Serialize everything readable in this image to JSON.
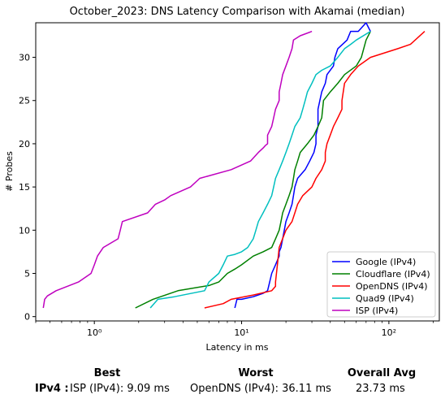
{
  "chart_data": {
    "type": "line",
    "title": "October_2023: DNS Latency Comparison with Akamai (median)",
    "xlabel": "Latency in ms",
    "ylabel": "# Probes",
    "xscale": "log",
    "xlim": [
      0.4,
      220
    ],
    "ylim": [
      -0.5,
      34
    ],
    "x_ticks": [
      1,
      10,
      100
    ],
    "x_tick_labels": [
      "10⁰",
      "10¹",
      "10²"
    ],
    "y_ticks": [
      0,
      5,
      10,
      15,
      20,
      25,
      30
    ],
    "grid": false,
    "legend_position": "lower-right",
    "series": [
      {
        "name": "Google (IPv4)",
        "color": "#0000ff",
        "x": [
          9.0,
          9.3,
          10,
          12,
          14,
          15,
          15.5,
          16,
          17,
          18,
          18,
          18.5,
          19,
          19.5,
          20,
          21,
          22,
          22.5,
          23,
          24,
          27,
          29,
          31,
          32,
          32,
          33,
          33,
          33,
          34,
          35,
          37,
          38,
          42,
          43,
          45,
          52,
          55,
          62,
          70,
          75
        ],
        "y": [
          1,
          2,
          2,
          2.3,
          2.7,
          3,
          4,
          5,
          6,
          7,
          7.5,
          8,
          9,
          10,
          11,
          12,
          13,
          14,
          15,
          16,
          17,
          18,
          19,
          20,
          21,
          22,
          23,
          24,
          25,
          26,
          27,
          28,
          29,
          30,
          31,
          32,
          33,
          33,
          34,
          33
        ]
      },
      {
        "name": "Cloudflare (IPv4)",
        "color": "#008000",
        "x": [
          1.9,
          2.5,
          3.7,
          6,
          7,
          8,
          9,
          10,
          12,
          14,
          16,
          17,
          18,
          18.5,
          19,
          20,
          21,
          22,
          22.5,
          23,
          24,
          25,
          28,
          31,
          33,
          35,
          36,
          40,
          45,
          50,
          60,
          65,
          70,
          75
        ],
        "y": [
          1,
          2,
          3,
          3.6,
          4,
          5,
          5.5,
          6,
          7,
          7.5,
          8,
          9,
          10,
          11,
          12,
          13,
          14,
          15,
          16,
          17,
          18,
          19,
          20,
          21,
          22,
          23,
          25,
          26,
          27,
          28,
          29,
          30,
          32,
          33
        ]
      },
      {
        "name": "OpenDNS (IPv4)",
        "color": "#ff0000",
        "x": [
          5.6,
          7.5,
          8.5,
          12,
          16,
          17,
          17,
          17.5,
          18,
          20,
          22,
          23,
          24,
          26,
          30,
          32,
          35,
          37,
          37,
          38,
          40,
          42,
          45,
          48,
          48,
          49,
          50,
          55,
          62,
          75,
          115,
          140,
          175
        ],
        "y": [
          1,
          1.5,
          2,
          2.5,
          3,
          3.5,
          4,
          6,
          8,
          10,
          11,
          12,
          13,
          14,
          15,
          16,
          17,
          18,
          19,
          20,
          21,
          22,
          23,
          24,
          25,
          26,
          27,
          28,
          29,
          30,
          31,
          31.5,
          33
        ]
      },
      {
        "name": "Quad9 (IPv4)",
        "color": "#00bfbf",
        "x": [
          2.4,
          2.7,
          3.5,
          5.6,
          6,
          7,
          7.5,
          8,
          9,
          10,
          11,
          12,
          12.5,
          13,
          14,
          15,
          16,
          16.5,
          17,
          18,
          19,
          20,
          21,
          22,
          23,
          25,
          26,
          27,
          28,
          30,
          32,
          35,
          40,
          45,
          50,
          55,
          60,
          75
        ],
        "y": [
          1,
          2,
          2.3,
          3,
          4,
          5,
          6,
          7,
          7.2,
          7.5,
          8,
          9,
          10,
          11,
          12,
          13,
          14,
          15,
          16,
          17,
          18,
          19,
          20,
          21,
          22,
          23,
          24,
          25,
          26,
          27,
          28,
          28.5,
          29,
          30,
          31,
          31.5,
          32,
          33
        ]
      },
      {
        "name": "ISP (IPv4)",
        "color": "#bf00bf",
        "x": [
          0.45,
          0.46,
          0.48,
          0.55,
          0.78,
          0.95,
          1.0,
          1.05,
          1.15,
          1.45,
          1.5,
          1.55,
          2.3,
          2.6,
          3.0,
          3.3,
          4.5,
          5.2,
          8.5,
          11.5,
          13,
          14,
          14.5,
          15,
          15,
          16,
          16.5,
          17,
          18,
          18,
          18.5,
          19,
          20,
          21,
          22,
          22.5,
          25,
          30
        ],
        "y": [
          1,
          2,
          2.4,
          3,
          4,
          5,
          6,
          7,
          8,
          9,
          10,
          11,
          12,
          13,
          13.5,
          14,
          15,
          16,
          17,
          18,
          19,
          19.5,
          19.8,
          20,
          21,
          22,
          23,
          24,
          25,
          26,
          27,
          28,
          29,
          30,
          31,
          32,
          32.5,
          33
        ]
      }
    ]
  },
  "summary": {
    "best_header": "Best",
    "worst_header": "Worst",
    "avg_header": "Overall Avg",
    "row_label": "IPv4 :",
    "best_value": "ISP (IPv4): 9.09 ms",
    "worst_value": "OpenDNS (IPv4): 36.11 ms",
    "avg_value": "23.73 ms"
  }
}
